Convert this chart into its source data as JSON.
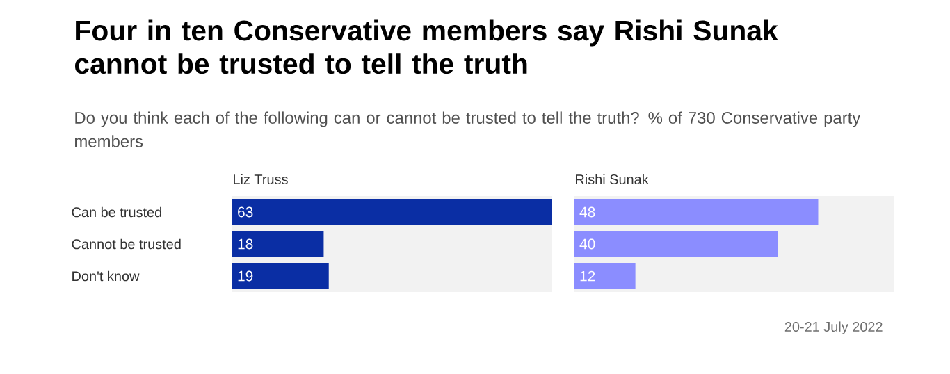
{
  "chart_data": [
    {
      "type": "bar",
      "orientation": "horizontal",
      "title": "Four in ten Conservative members say Rishi Sunak cannot be trusted to tell the truth",
      "subtitle": "Do you think each of the following can or cannot be trusted to tell the truth? % of 730 Conservative party members",
      "categories": [
        "Can be trusted",
        "Cannot be trusted",
        "Don't know"
      ],
      "series": [
        {
          "name": "Liz Truss",
          "color": "#0a2ea4",
          "values": [
            63,
            18,
            19
          ]
        }
      ],
      "data_labels": true,
      "tick_labels": "y"
    },
    {
      "type": "bar",
      "orientation": "horizontal",
      "series": [
        {
          "name": "Rishi Sunak",
          "color": "#8b8dff",
          "values": [
            48,
            40,
            12
          ]
        }
      ],
      "data_labels": true,
      "tick_labels": false,
      "annotations": [
        "20-21 July 2022"
      ]
    }
  ]
}
